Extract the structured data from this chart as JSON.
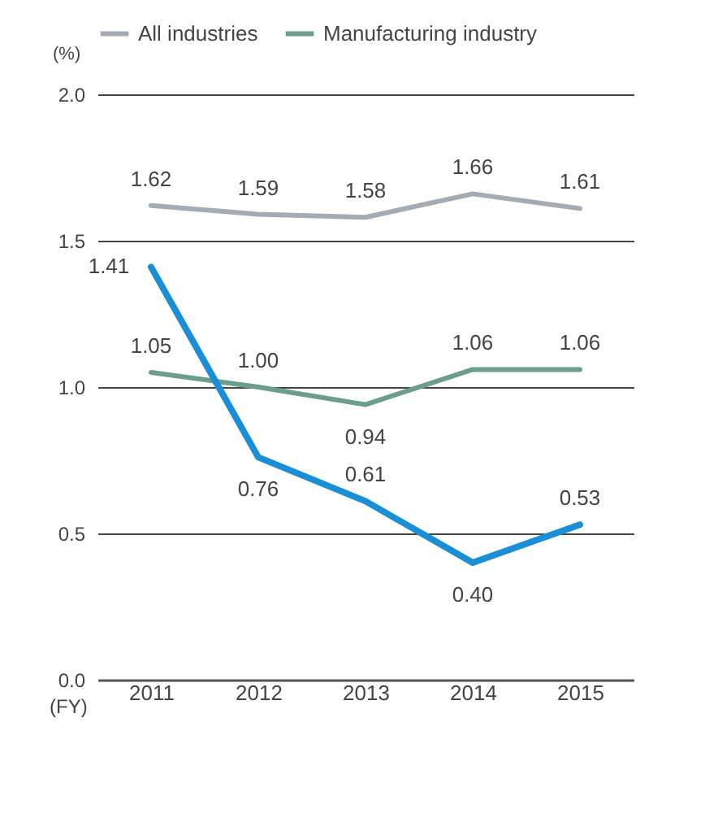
{
  "chart_data": {
    "type": "line",
    "categories": [
      "2011",
      "2012",
      "2013",
      "2014",
      "2015"
    ],
    "series": [
      {
        "name": "All industries",
        "color": "#a3acb4",
        "values": [
          1.62,
          1.59,
          1.58,
          1.66,
          1.61
        ],
        "value_labels": [
          "1.62",
          "1.59",
          "1.58",
          "1.66",
          "1.61"
        ]
      },
      {
        "name": "Manufacturing industry",
        "color": "#6b9e8c",
        "values": [
          1.05,
          1.0,
          0.94,
          1.06,
          1.06
        ],
        "value_labels": [
          "1.05",
          "1.00",
          "0.94",
          "1.06",
          "1.06"
        ]
      },
      {
        "color": "#1b8fd6",
        "values": [
          1.41,
          0.76,
          0.61,
          0.4,
          0.53
        ],
        "value_labels": [
          "1.41",
          "0.76",
          "0.61",
          "0.40",
          "0.53"
        ]
      }
    ],
    "xlabel": "(FY)",
    "ylabel": "(%)",
    "ylim": [
      0,
      2.0
    ],
    "yticks": [
      {
        "value": 0,
        "label": "0.0"
      },
      {
        "value": 0.5,
        "label": "0.5"
      },
      {
        "value": 1.0,
        "label": "1.0"
      },
      {
        "value": 1.5,
        "label": "1.5"
      },
      {
        "value": 2.0,
        "label": "2.0"
      }
    ],
    "grid": "y",
    "legend": "top left",
    "data_labels": true,
    "marker": "none",
    "line_style": "solid"
  }
}
